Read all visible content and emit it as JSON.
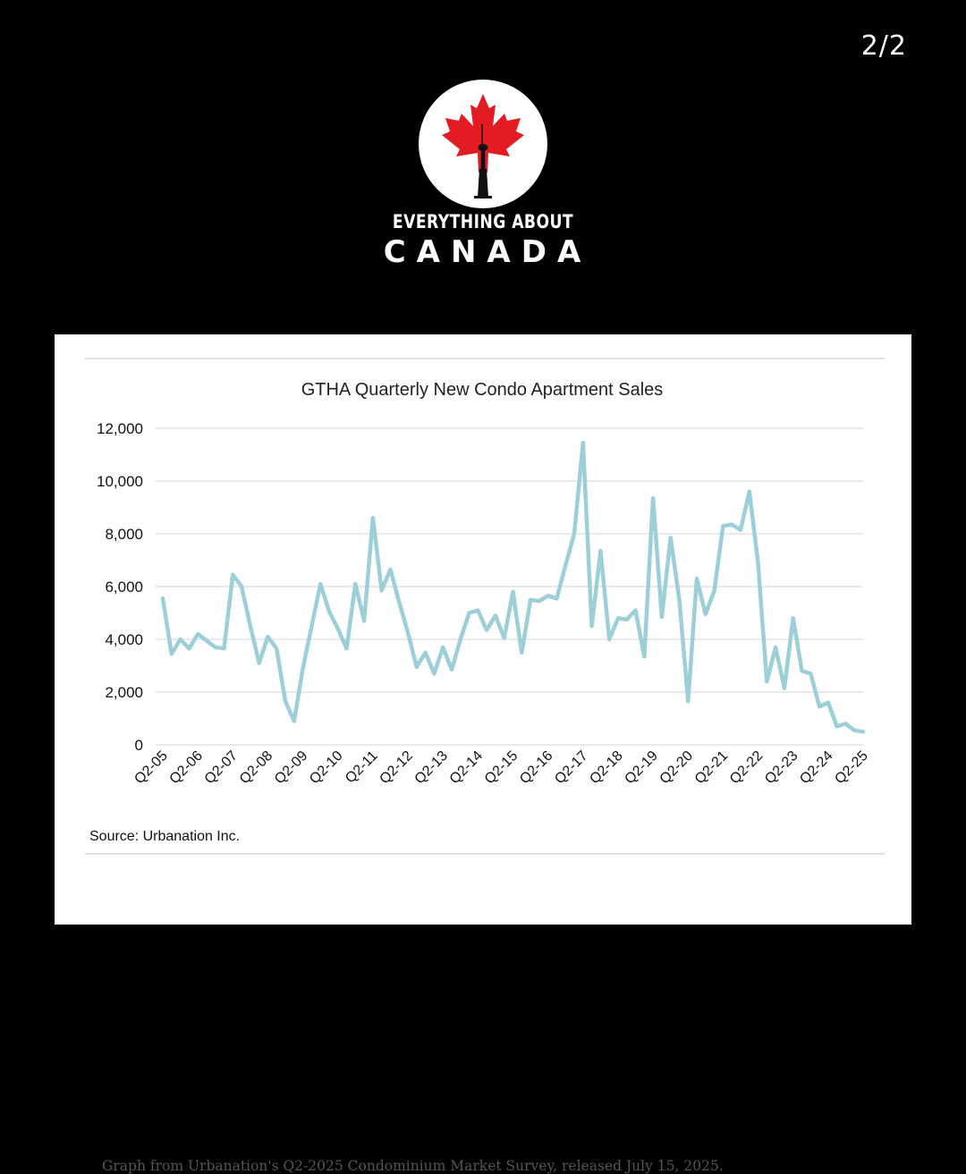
{
  "page_indicator": "2/2",
  "brand": {
    "line1": "EVERYTHING ABOUT",
    "line2": "CANADA",
    "logo_icon": "maple-leaf-cn-tower-icon",
    "leaf_color": "#e31b23"
  },
  "chart_data": {
    "type": "line",
    "title": "GTHA Quarterly New Condo Apartment Sales",
    "xlabel": "",
    "ylabel": "",
    "ylim": [
      0,
      12000
    ],
    "yticks": [
      0,
      2000,
      4000,
      6000,
      8000,
      10000,
      12000
    ],
    "ytick_labels": [
      "0",
      "2,000",
      "4,000",
      "6,000",
      "8,000",
      "10,000",
      "12,000"
    ],
    "xtick_labels": [
      "Q2-05",
      "Q2-06",
      "Q2-07",
      "Q2-08",
      "Q2-09",
      "Q2-10",
      "Q2-11",
      "Q2-12",
      "Q2-13",
      "Q2-14",
      "Q2-15",
      "Q2-16",
      "Q2-17",
      "Q2-18",
      "Q2-19",
      "Q2-20",
      "Q2-21",
      "Q2-22",
      "Q2-23",
      "Q2-24",
      "Q2-25"
    ],
    "grid": true,
    "line_color": "#9ccfd7",
    "series": [
      {
        "values": [
          5550,
          3450,
          4000,
          3650,
          4200,
          3950,
          3700,
          3650,
          6450,
          6000,
          4500,
          3100,
          4100,
          3650,
          1650,
          900,
          2900,
          4500,
          6100,
          5050,
          4400,
          3650,
          6100,
          4700,
          8600,
          5850,
          6650,
          5400,
          4250,
          2950,
          3500,
          2700,
          3700,
          2850,
          4000,
          5000,
          5100,
          4350,
          4900,
          4050,
          5800,
          3500,
          5500,
          5450,
          5650,
          5550,
          6800,
          8000,
          11450,
          4500,
          7350,
          4000,
          4800,
          4750,
          5100,
          3350,
          9350,
          4850,
          7850,
          5500,
          1650,
          6300,
          4950,
          5850,
          8300,
          8350,
          8150,
          9600,
          6900,
          2400,
          3700,
          2150,
          4800,
          2800,
          2700,
          1450,
          1600,
          700,
          800,
          550,
          500
        ]
      }
    ],
    "source": "Source: Urbanation Inc."
  },
  "caption": "Graph from Urbanation's Q2-2025 Condominium Market Survey, released July 15, 2025."
}
